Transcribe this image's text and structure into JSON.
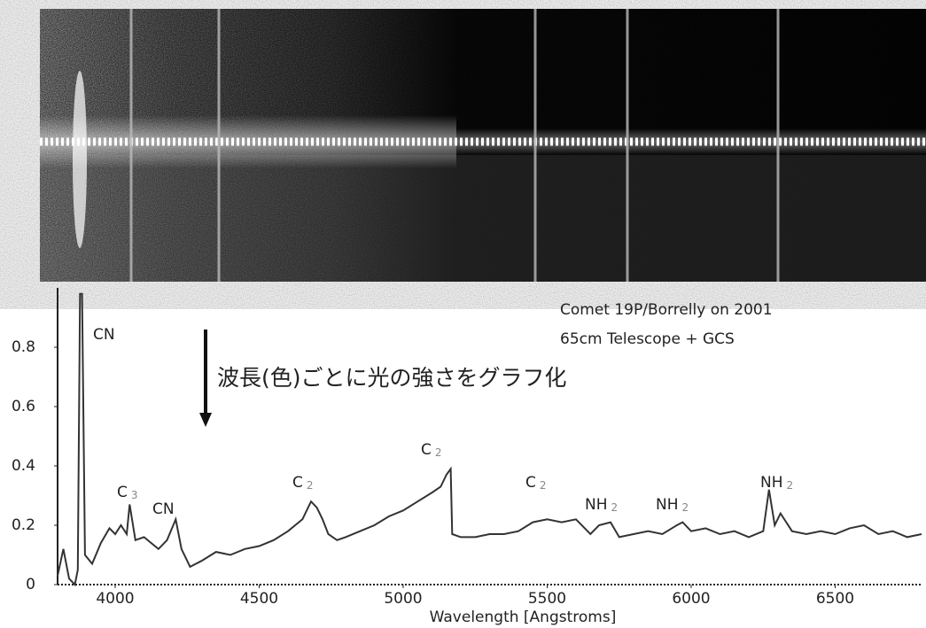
{
  "chart_data": {
    "type": "line",
    "title": "Comet 19P/Borrelly on 2001",
    "subtitle": "65cm Telescope + GCS",
    "caption": "波長(色)ごとに光の強さをグラフ化",
    "x_label": "Wavelength [Angstroms]",
    "color": "#333333",
    "x": [
      3800,
      3820,
      3840,
      3860,
      3870,
      3878,
      3885,
      3895,
      3920,
      3950,
      3980,
      4000,
      4020,
      4040,
      4050,
      4070,
      4100,
      4150,
      4180,
      4210,
      4230,
      4260,
      4300,
      4350,
      4400,
      4450,
      4500,
      4550,
      4600,
      4650,
      4680,
      4700,
      4720,
      4740,
      4770,
      4800,
      4850,
      4900,
      4950,
      5000,
      5050,
      5100,
      5130,
      5150,
      5165,
      5170,
      5200,
      5250,
      5300,
      5350,
      5400,
      5450,
      5500,
      5550,
      5600,
      5650,
      5680,
      5720,
      5750,
      5800,
      5850,
      5900,
      5950,
      5970,
      6000,
      6050,
      6100,
      6150,
      6200,
      6250,
      6270,
      6290,
      6310,
      6350,
      6400,
      6450,
      6500,
      6550,
      6600,
      6650,
      6700,
      6750,
      6800
    ],
    "values": [
      0.03,
      0.12,
      0.02,
      0.0,
      0.05,
      0.98,
      0.98,
      0.1,
      0.07,
      0.14,
      0.19,
      0.17,
      0.2,
      0.17,
      0.27,
      0.15,
      0.16,
      0.12,
      0.15,
      0.22,
      0.12,
      0.06,
      0.08,
      0.11,
      0.1,
      0.12,
      0.13,
      0.15,
      0.18,
      0.22,
      0.28,
      0.26,
      0.22,
      0.17,
      0.15,
      0.16,
      0.18,
      0.2,
      0.23,
      0.25,
      0.28,
      0.31,
      0.33,
      0.37,
      0.39,
      0.17,
      0.16,
      0.16,
      0.17,
      0.17,
      0.18,
      0.21,
      0.22,
      0.21,
      0.22,
      0.17,
      0.2,
      0.21,
      0.16,
      0.17,
      0.18,
      0.17,
      0.2,
      0.21,
      0.18,
      0.19,
      0.17,
      0.18,
      0.16,
      0.18,
      0.32,
      0.2,
      0.24,
      0.18,
      0.17,
      0.18,
      0.17,
      0.19,
      0.2,
      0.17,
      0.18,
      0.16,
      0.17
    ],
    "xlim": [
      3800,
      6800
    ],
    "xticks": [
      4000,
      4500,
      5000,
      5500,
      6000,
      6500
    ],
    "ylim": [
      0,
      1
    ],
    "yticks": [
      0,
      0.2,
      0.4,
      0.6,
      0.8
    ],
    "annotations": [
      {
        "text": "CN"
      },
      {
        "text": "C",
        "sub": "3"
      },
      {
        "text": "CN"
      },
      {
        "text": "C",
        "sub": "2"
      },
      {
        "text": "C",
        "sub": "2"
      },
      {
        "text": "C",
        "sub": "2"
      },
      {
        "text": "NH",
        "sub": "2"
      },
      {
        "text": "NH",
        "sub": "2"
      },
      {
        "text": "NH",
        "sub": "2"
      }
    ]
  }
}
